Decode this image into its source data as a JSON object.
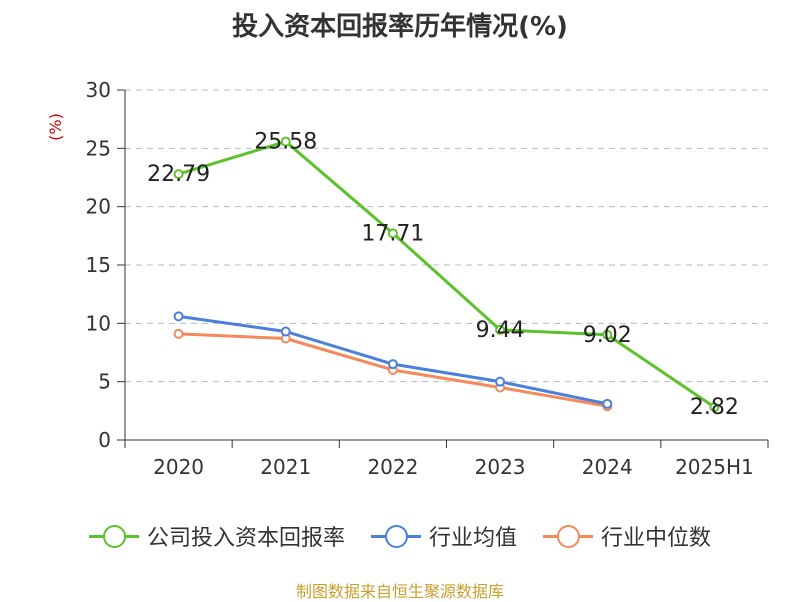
{
  "title": "投入资本回报率历年情况(%)",
  "y_unit": "(%)",
  "source": "制图数据来自恒生聚源数据库",
  "legend": [
    {
      "label": "公司投入资本回报率",
      "color": "#5cc12a"
    },
    {
      "label": "行业均值",
      "color": "#4a7fdc"
    },
    {
      "label": "行业中位数",
      "color": "#f4895a"
    }
  ],
  "chart_data": {
    "type": "line",
    "title": "投入资本回报率历年情况(%)",
    "xlabel": "",
    "ylabel": "(%)",
    "categories": [
      "2020",
      "2021",
      "2022",
      "2023",
      "2024",
      "2025H1"
    ],
    "ylim": [
      0,
      30
    ],
    "yticks": [
      0,
      5,
      10,
      15,
      20,
      25,
      30
    ],
    "grid": true,
    "legend_position": "bottom",
    "series": [
      {
        "name": "公司投入资本回报率",
        "color": "#5cc12a",
        "values": [
          22.79,
          25.58,
          17.71,
          9.44,
          9.02,
          2.82
        ],
        "labels": [
          "22.79",
          "25.58",
          "17.71",
          "9.44",
          "9.02",
          "2.82"
        ]
      },
      {
        "name": "行业均值",
        "color": "#4a7fdc",
        "values": [
          10.6,
          9.3,
          6.5,
          5.0,
          3.1,
          null
        ]
      },
      {
        "name": "行业中位数",
        "color": "#f4895a",
        "values": [
          9.1,
          8.7,
          6.0,
          4.5,
          2.9,
          null
        ]
      }
    ]
  }
}
